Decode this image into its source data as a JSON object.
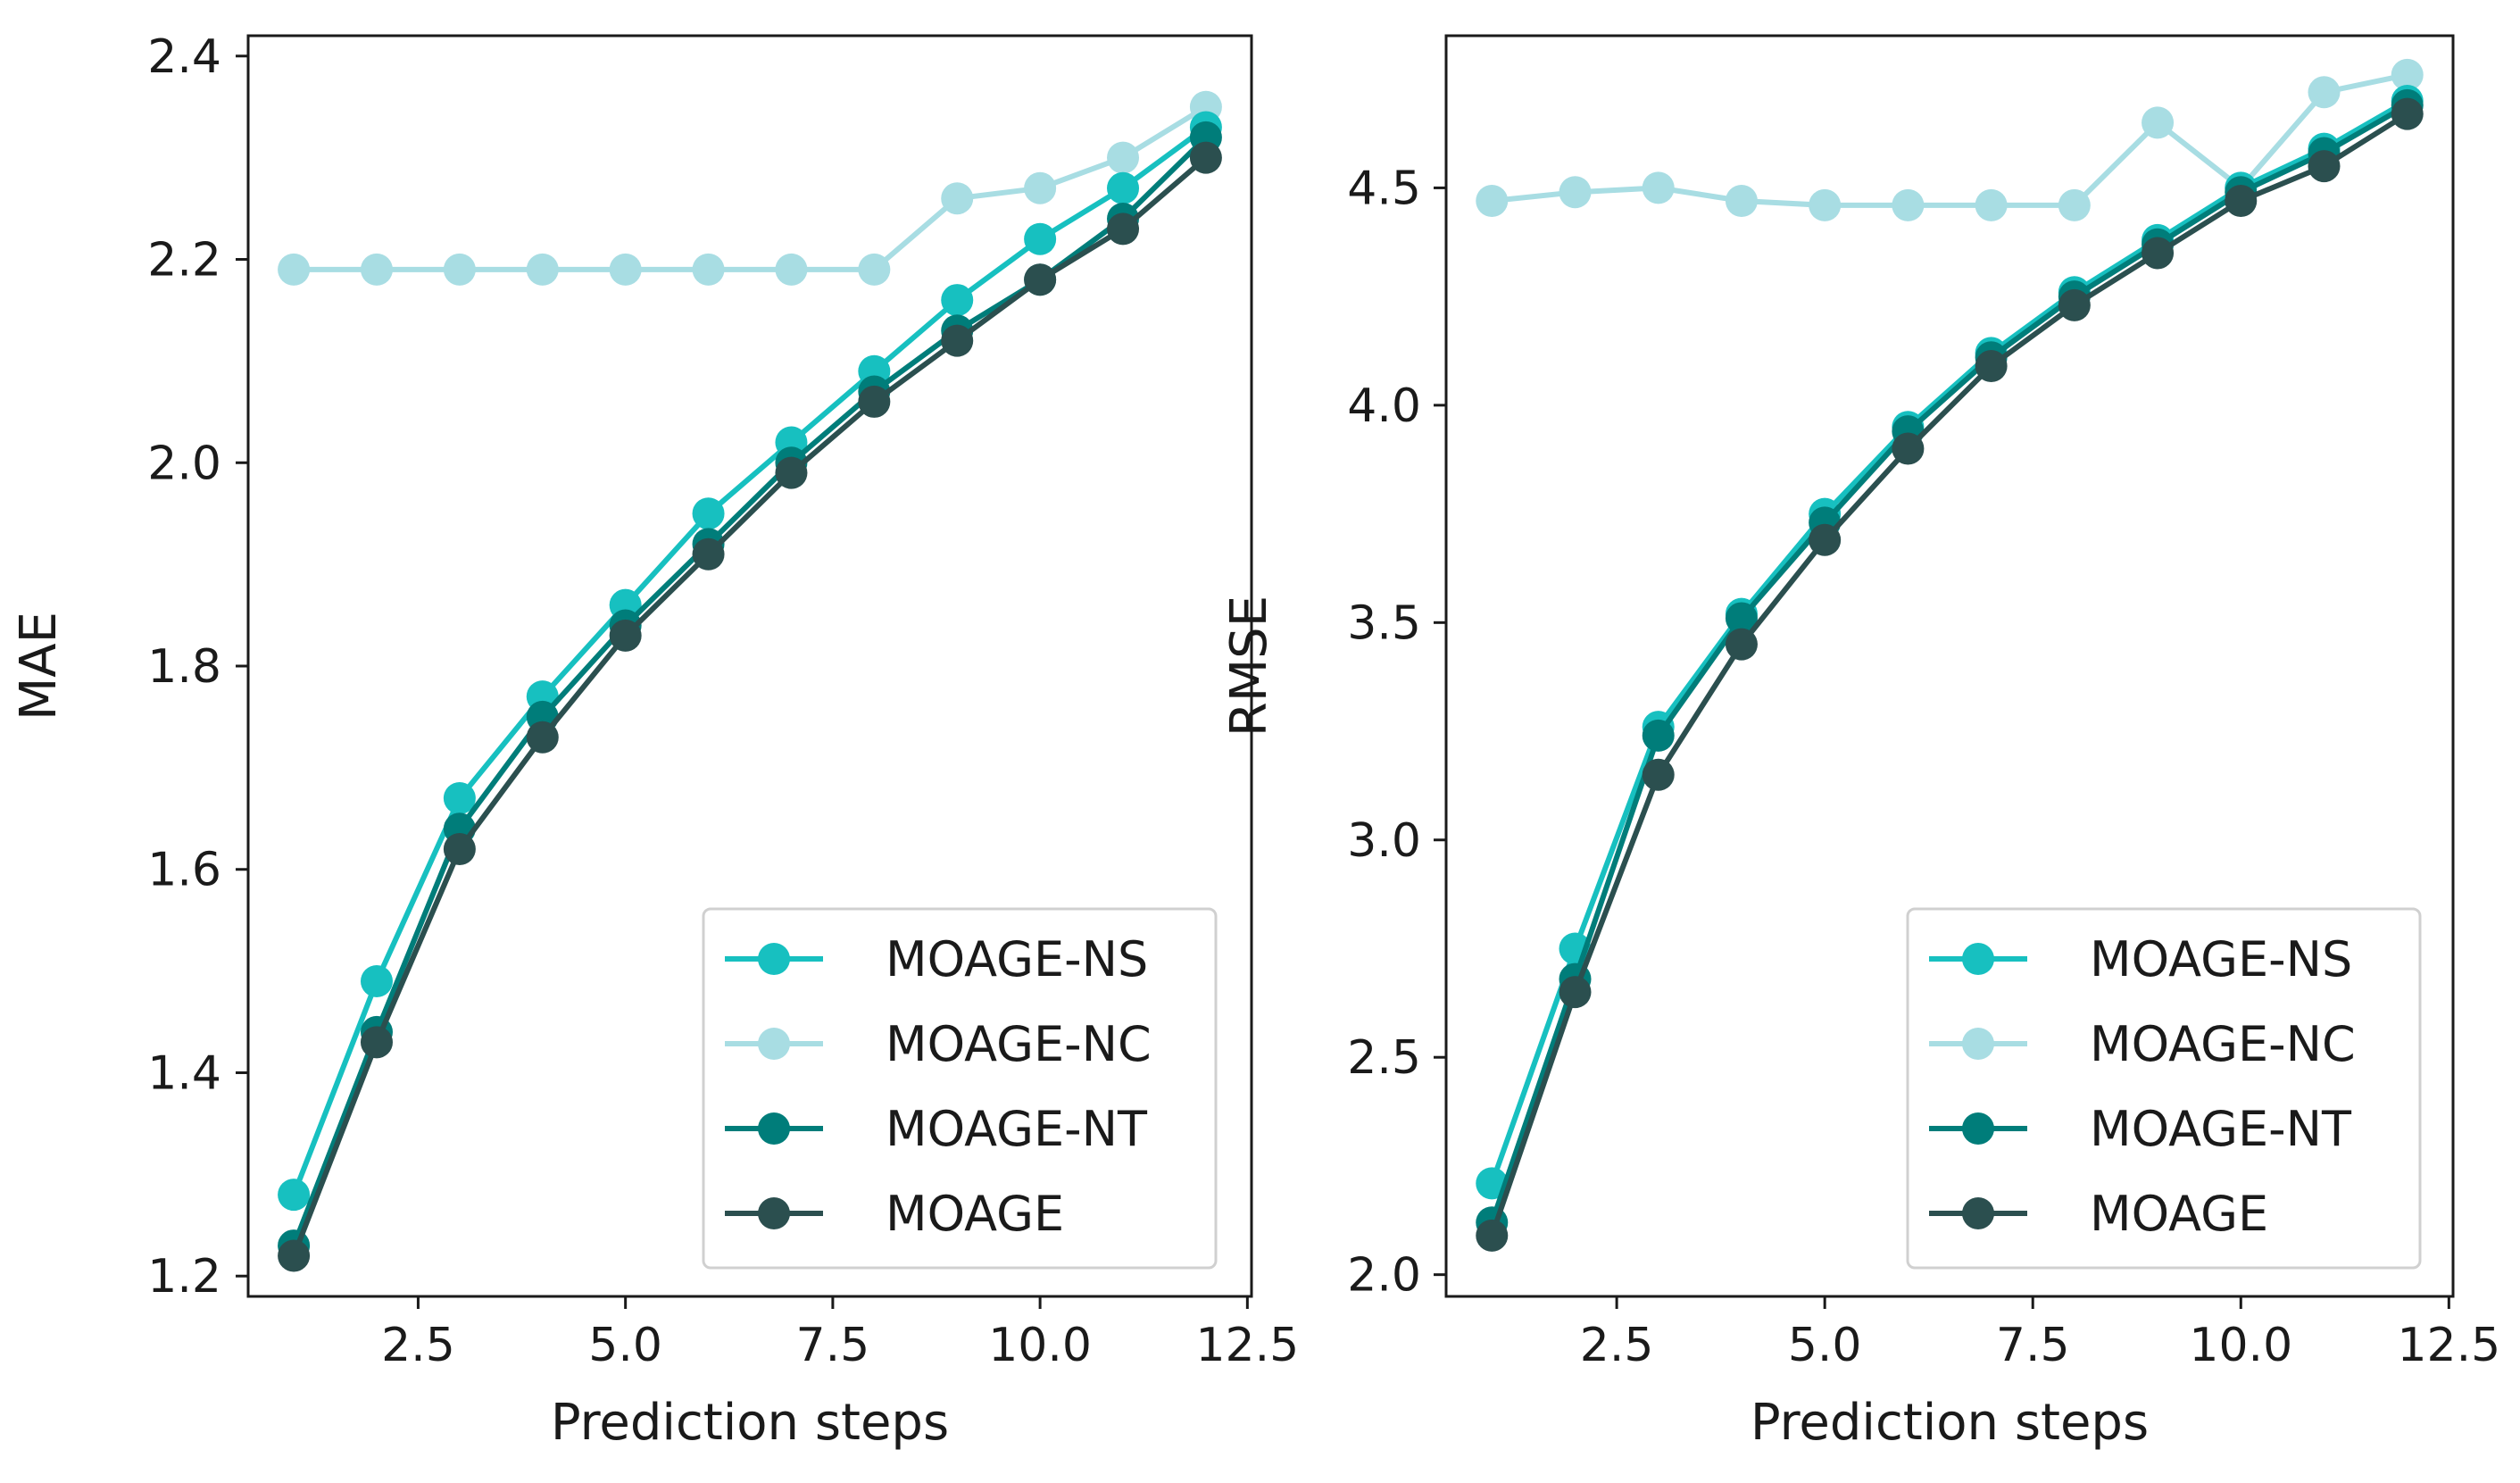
{
  "chart_data": [
    {
      "type": "line",
      "xlabel": "Prediction steps",
      "ylabel": "MAE",
      "xlim": [
        0.45,
        12.55
      ],
      "ylim": [
        1.18,
        2.42
      ],
      "xticks": [
        "2.5",
        "5.0",
        "7.5",
        "10.0",
        "12.5"
      ],
      "yticks": [
        "1.2",
        "1.4",
        "1.6",
        "1.8",
        "2.0",
        "2.2",
        "2.4"
      ],
      "legend_position": "lower-right",
      "x": [
        1,
        2,
        3,
        4,
        5,
        6,
        7,
        8,
        9,
        10,
        11,
        12
      ],
      "series": [
        {
          "name": "MOAGE-NS",
          "color": "#17c0c0",
          "values": [
            1.28,
            1.49,
            1.67,
            1.77,
            1.86,
            1.95,
            2.02,
            2.09,
            2.16,
            2.22,
            2.27,
            2.33
          ]
        },
        {
          "name": "MOAGE-NC",
          "color": "#a8dde3",
          "values": [
            2.19,
            2.19,
            2.19,
            2.19,
            2.19,
            2.19,
            2.19,
            2.19,
            2.26,
            2.27,
            2.3,
            2.35
          ]
        },
        {
          "name": "MOAGE-NT",
          "color": "#007d7a",
          "values": [
            1.23,
            1.44,
            1.64,
            1.75,
            1.84,
            1.92,
            2.0,
            2.07,
            2.13,
            2.18,
            2.24,
            2.32
          ]
        },
        {
          "name": "MOAGE",
          "color": "#2b4f4f",
          "values": [
            1.22,
            1.43,
            1.62,
            1.73,
            1.83,
            1.91,
            1.99,
            2.06,
            2.12,
            2.18,
            2.23,
            2.3
          ]
        }
      ]
    },
    {
      "type": "line",
      "xlabel": "Prediction steps",
      "ylabel": "RMSE",
      "xlim": [
        0.45,
        12.55
      ],
      "ylim": [
        1.95,
        4.85
      ],
      "xticks": [
        "2.5",
        "5.0",
        "7.5",
        "10.0",
        "12.5"
      ],
      "yticks": [
        "2.0",
        "2.5",
        "3.0",
        "3.5",
        "4.0",
        "4.5"
      ],
      "legend_position": "lower-right",
      "x": [
        1,
        2,
        3,
        4,
        5,
        6,
        7,
        8,
        9,
        10,
        11,
        12
      ],
      "series": [
        {
          "name": "MOAGE-NS",
          "color": "#17c0c0",
          "values": [
            2.21,
            2.75,
            3.26,
            3.52,
            3.75,
            3.95,
            4.12,
            4.26,
            4.38,
            4.5,
            4.59,
            4.7
          ]
        },
        {
          "name": "MOAGE-NC",
          "color": "#a8dde3",
          "values": [
            4.47,
            4.49,
            4.5,
            4.47,
            4.46,
            4.46,
            4.46,
            4.46,
            4.65,
            4.5,
            4.72,
            4.76
          ]
        },
        {
          "name": "MOAGE-NT",
          "color": "#007d7a",
          "values": [
            2.12,
            2.68,
            3.24,
            3.51,
            3.73,
            3.94,
            4.11,
            4.25,
            4.37,
            4.49,
            4.58,
            4.69
          ]
        },
        {
          "name": "MOAGE",
          "color": "#2b4f4f",
          "values": [
            2.09,
            2.65,
            3.15,
            3.45,
            3.69,
            3.9,
            4.09,
            4.23,
            4.35,
            4.47,
            4.55,
            4.67
          ]
        }
      ]
    }
  ]
}
